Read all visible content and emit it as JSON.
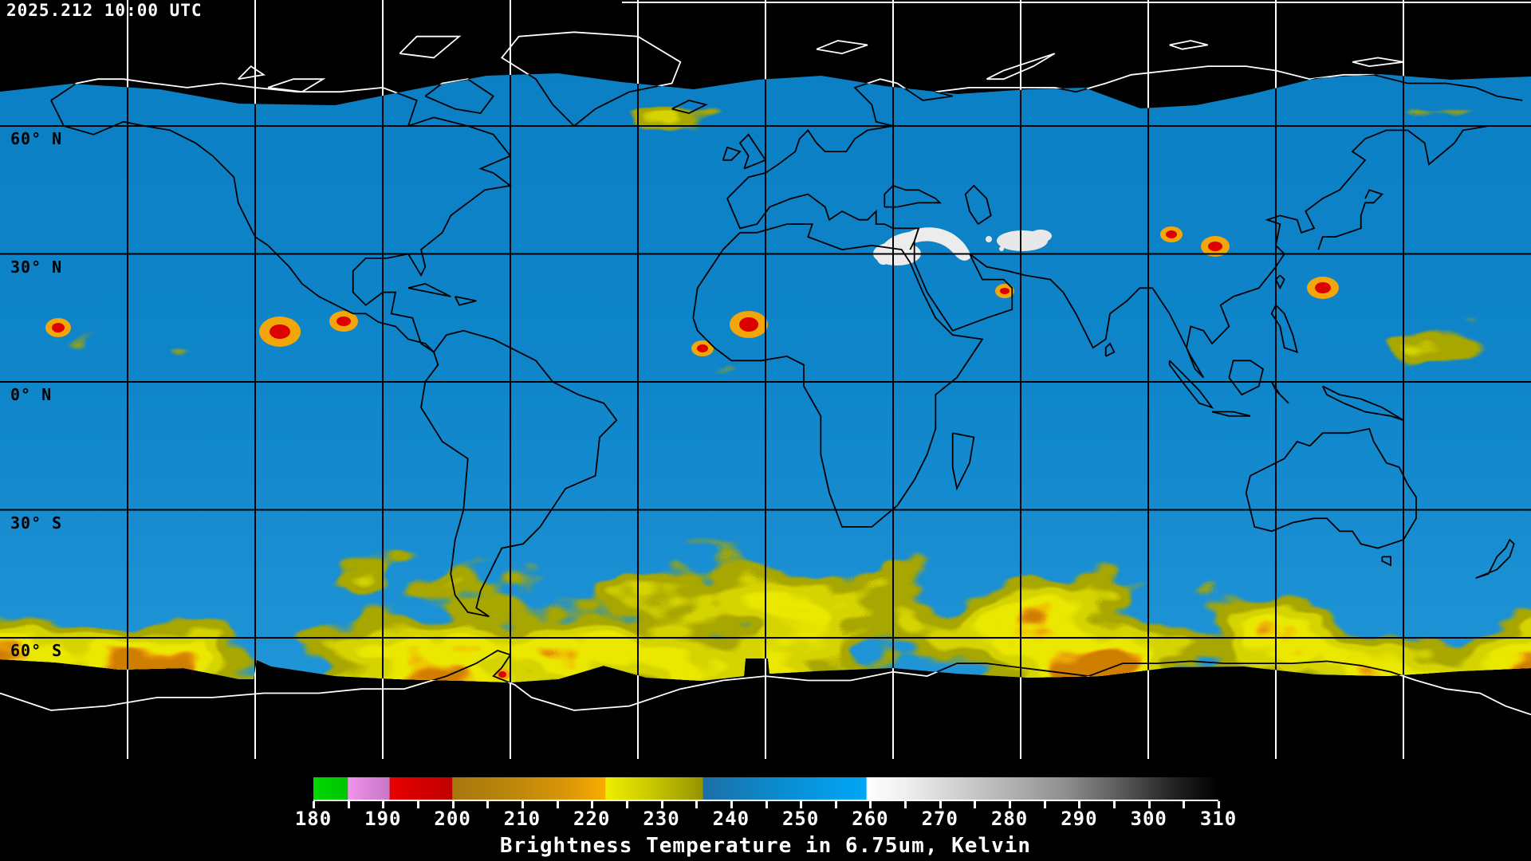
{
  "header": {
    "timestamp": "2025.212 10:00 UTC"
  },
  "map": {
    "projection": "equirectangular",
    "latitude_labels": [
      {
        "label": "60° N",
        "lat": 60
      },
      {
        "label": "30° N",
        "lat": 30
      },
      {
        "label": "0° N",
        "lat": 0
      },
      {
        "label": "30° S",
        "lat": -30
      },
      {
        "label": "60° S",
        "lat": -60
      }
    ],
    "graticule": {
      "lon_spacing_deg": 30,
      "lat_spacing_deg": 30,
      "line_color_over_data": "#000000",
      "line_color_over_space": "#ffffff"
    },
    "palette": {
      "space_black": "#000000",
      "moist_blue": "#0f85ca",
      "olive": "#a8a600",
      "yellow": "#d6d400",
      "bright_yellow": "#eae800",
      "orange": "#f2a60a",
      "deep_orange": "#cf7e00",
      "cold_red": "#dc0000",
      "dry_white": "#ececec",
      "coast_over_data": "#000000",
      "coast_over_space": "#ffffff"
    }
  },
  "colorbar": {
    "caption": "Brightness Temperature in 6.75um, Kelvin",
    "min": 180,
    "max": 310,
    "minor_tick_step": 5,
    "labeled_ticks": [
      180,
      190,
      200,
      210,
      220,
      230,
      240,
      250,
      260,
      270,
      280,
      290,
      300,
      310
    ],
    "gradient_stops": [
      {
        "t": 180.0,
        "c": "#00d800"
      },
      {
        "t": 184.9,
        "c": "#00c400"
      },
      {
        "t": 185.0,
        "c": "#f095ec"
      },
      {
        "t": 187.5,
        "c": "#dd85da"
      },
      {
        "t": 190.9,
        "c": "#c878c8"
      },
      {
        "t": 191.0,
        "c": "#e80000"
      },
      {
        "t": 195.0,
        "c": "#d40000"
      },
      {
        "t": 199.9,
        "c": "#c00000"
      },
      {
        "t": 200.0,
        "c": "#a8770f"
      },
      {
        "t": 208.0,
        "c": "#ba860a"
      },
      {
        "t": 216.0,
        "c": "#d89508"
      },
      {
        "t": 221.9,
        "c": "#f8ac00"
      },
      {
        "t": 222.0,
        "c": "#eeee00"
      },
      {
        "t": 228.0,
        "c": "#cccb00"
      },
      {
        "t": 235.9,
        "c": "#959300"
      },
      {
        "t": 236.0,
        "c": "#1c6fa6"
      },
      {
        "t": 247.0,
        "c": "#0b8cd0"
      },
      {
        "t": 259.4,
        "c": "#00a6f6"
      },
      {
        "t": 259.5,
        "c": "#ffffff"
      },
      {
        "t": 265.0,
        "c": "#efefef"
      },
      {
        "t": 272.0,
        "c": "#d2d2d2"
      },
      {
        "t": 280.0,
        "c": "#b2b2b2"
      },
      {
        "t": 288.0,
        "c": "#8e8e8e"
      },
      {
        "t": 296.0,
        "c": "#5a5a5a"
      },
      {
        "t": 303.0,
        "c": "#262626"
      },
      {
        "t": 310.0,
        "c": "#000000"
      }
    ]
  }
}
